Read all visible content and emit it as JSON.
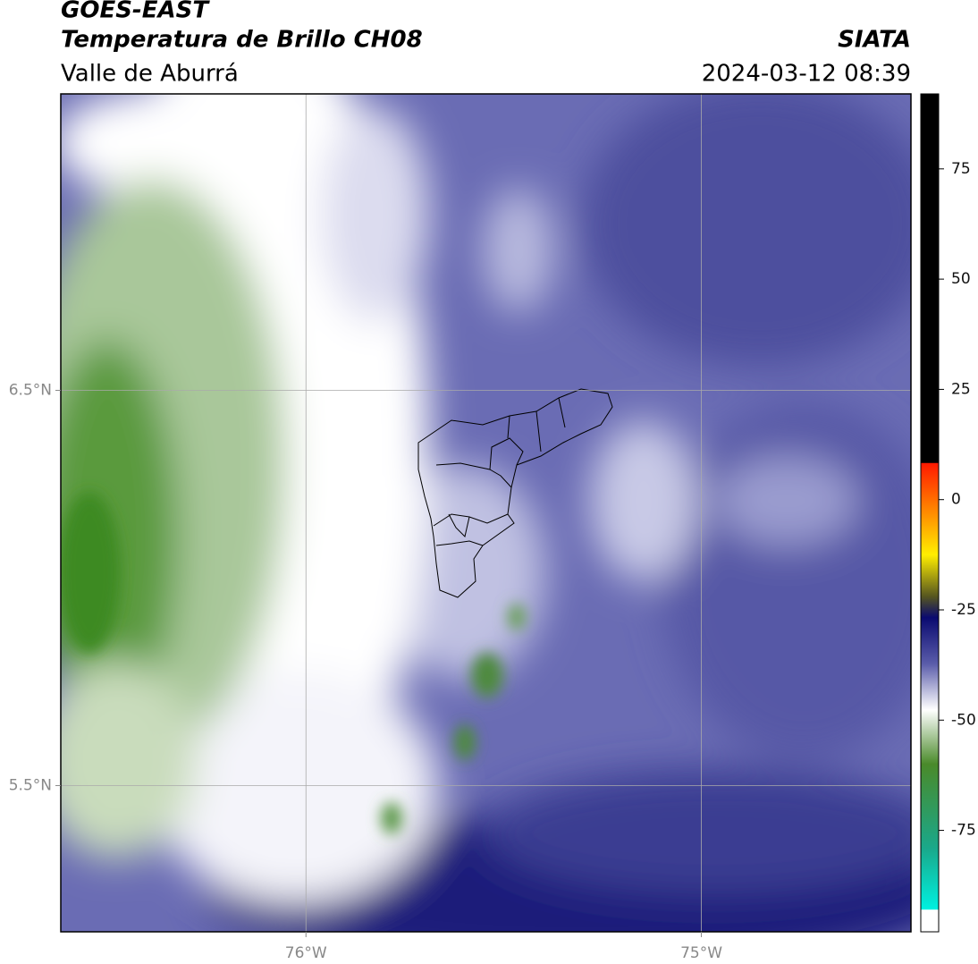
{
  "header": {
    "title": "GOES-EAST",
    "subtitle": "Temperatura de Brillo CH08",
    "region": "Valle de Aburrá",
    "source": "SIATA",
    "datetime": "2024-03-12 08:39"
  },
  "map": {
    "xlim": [
      -76.62,
      -74.47
    ],
    "ylim": [
      5.13,
      7.25
    ],
    "xticks": [
      {
        "value": -76,
        "label": "76°W"
      },
      {
        "value": -75,
        "label": "75°W"
      }
    ],
    "yticks": [
      {
        "value": 6.5,
        "label": "6.5°N"
      },
      {
        "value": 5.5,
        "label": "5.5°N"
      }
    ],
    "grid": true
  },
  "colorbar": {
    "lim": [
      -98,
      92
    ],
    "ticks": [
      75,
      50,
      25,
      0,
      -25,
      -50,
      -75
    ]
  }
}
